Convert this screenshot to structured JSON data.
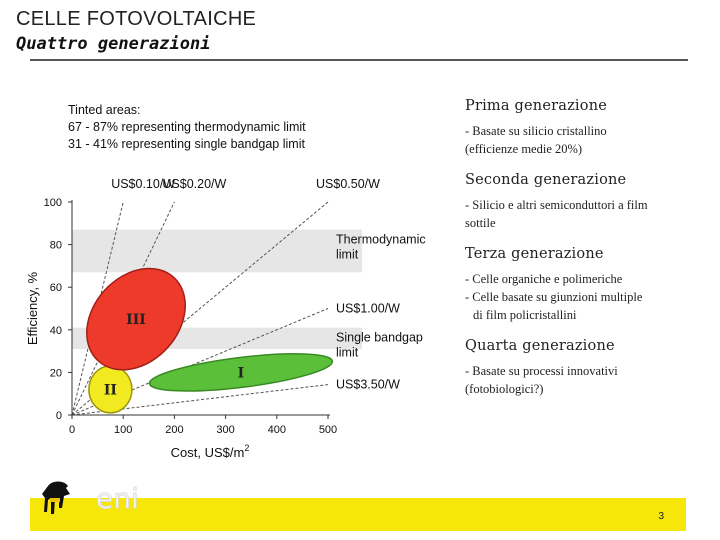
{
  "slide": {
    "title": "CELLE FOTOVOLTAICHE",
    "subtitle": "Quattro generazioni",
    "page_number": "3",
    "logo_text": "eni"
  },
  "generations": [
    {
      "title": "Prima generazione",
      "lines": [
        "- Basate su silicio cristallino",
        "(efficienze medie 20%)"
      ]
    },
    {
      "title": "Seconda generazione",
      "lines": [
        "- Silicio e altri semiconduttori a film",
        "sottile"
      ]
    },
    {
      "title": "Terza generazione",
      "lines": [
        "- Celle organiche e polimeriche",
        "- Celle basate su giunzioni multiple",
        "di film policristallini"
      ]
    },
    {
      "title": "Quarta generazione",
      "lines": [
        "- Basate su processi innovativi",
        "(fotobiologici?)"
      ]
    }
  ],
  "chart_data": {
    "type": "scatter",
    "title_lines": [
      "Tinted areas:",
      "67 - 87% representing thermodynamic limit",
      "31 - 41% representing single bandgap limit"
    ],
    "xlabel": "Cost, US$/m",
    "xlabel_superscript": "2",
    "ylabel": "Efficiency, %",
    "xlim": [
      0,
      500
    ],
    "ylim": [
      0,
      100
    ],
    "x_ticks": [
      0,
      100,
      200,
      300,
      400,
      500
    ],
    "y_ticks": [
      0,
      20,
      40,
      60,
      80,
      100
    ],
    "grid": false,
    "bands": [
      {
        "from": 67,
        "to": 87,
        "label_lines": [
          "Thermodynamic",
          "limit"
        ],
        "color": "#e6e6e6"
      },
      {
        "from": 31,
        "to": 41,
        "label_lines": [
          "Single bandgap",
          "limit"
        ],
        "color": "#e6e6e6"
      }
    ],
    "cost_lines": [
      {
        "label": "US$0.10/W",
        "usd_per_watt": 0.1,
        "label_pos": "top"
      },
      {
        "label": "US$0.20/W",
        "usd_per_watt": 0.2,
        "label_pos": "top"
      },
      {
        "label": "US$0.50/W",
        "usd_per_watt": 0.5,
        "label_pos": "top"
      },
      {
        "label": "US$1.00/W",
        "usd_per_watt": 1.0,
        "label_pos": "right"
      },
      {
        "label": "US$3.50/W",
        "usd_per_watt": 3.5,
        "label_pos": "right"
      }
    ],
    "regions": [
      {
        "label": "I",
        "cx": 330,
        "cy": 20,
        "rx": 180,
        "ry": 7,
        "angle_deg": 7,
        "color": "#5cbf3a",
        "stroke": "#3a8a22"
      },
      {
        "label": "II",
        "cx": 75,
        "cy": 12,
        "rx": 42,
        "ry": 11,
        "angle_deg": 0,
        "color": "#f1ea20",
        "stroke": "#9a9410"
      },
      {
        "label": "III",
        "cx": 125,
        "cy": 45,
        "rx": 110,
        "ry": 20,
        "angle_deg": 48,
        "color": "#ee3a2a",
        "stroke": "#a02018"
      }
    ]
  },
  "colors": {
    "footer_bar": "#f6e60a",
    "rule": "#555555"
  }
}
